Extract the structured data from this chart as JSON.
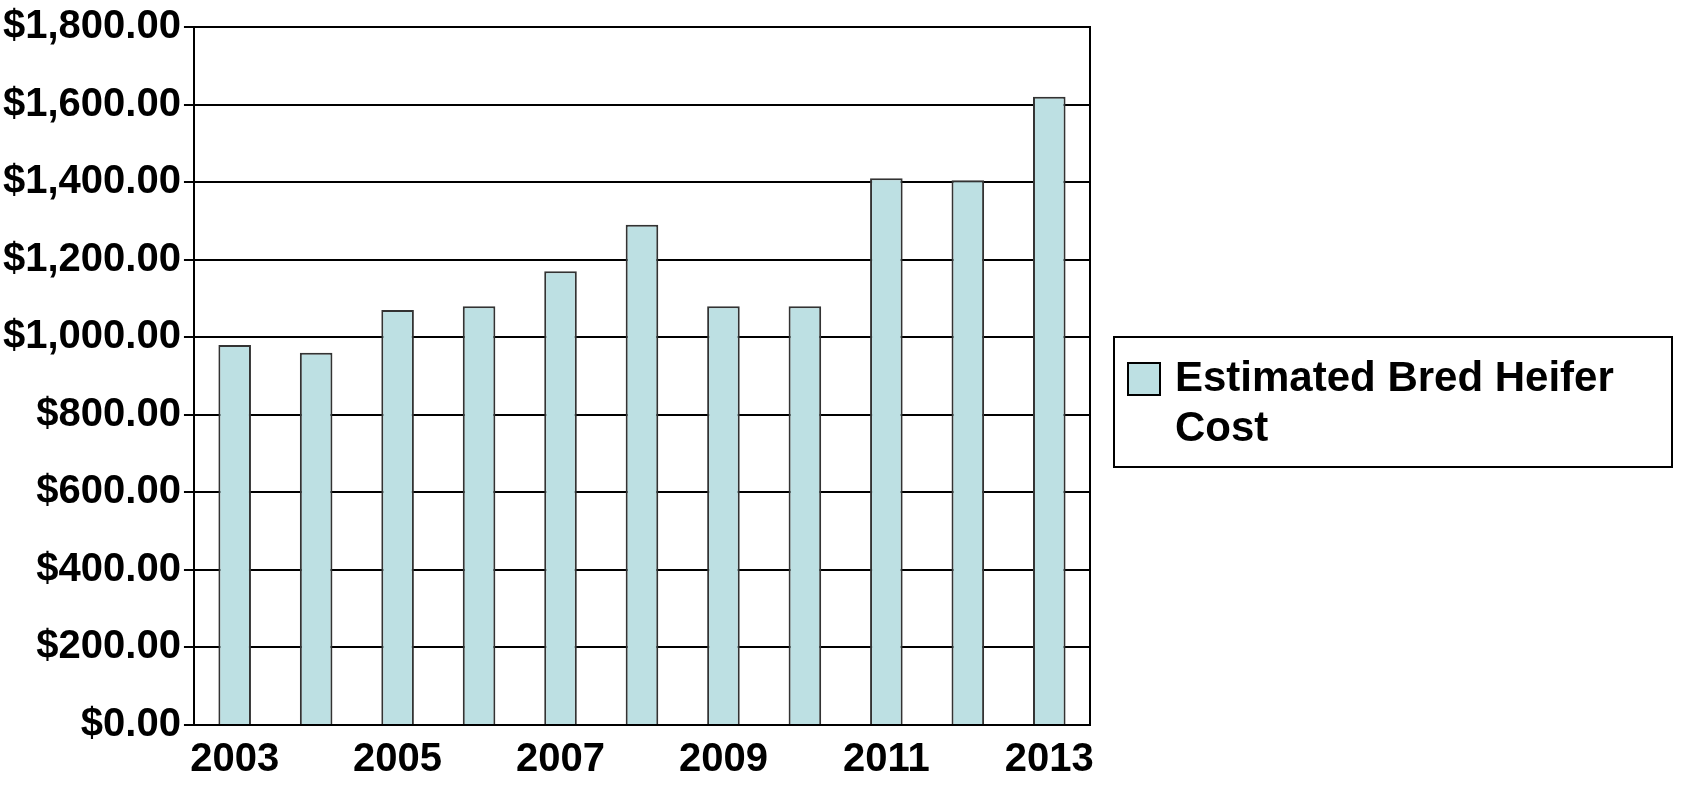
{
  "chart_data": {
    "type": "bar",
    "categories": [
      "2003",
      null,
      "2005",
      null,
      "2007",
      null,
      "2009",
      null,
      "2011",
      null,
      "2013"
    ],
    "series": [
      {
        "name": "Estimated Bred Heifer Cost",
        "color": "#bde0e3",
        "values": [
          980,
          960,
          1070,
          1080,
          1170,
          1290,
          1080,
          1080,
          1410,
          1405,
          1620
        ]
      }
    ],
    "ylim": [
      0,
      1800
    ],
    "yticks": [
      {
        "value": 0,
        "label": "$0.00"
      },
      {
        "value": 200,
        "label": "$200.00"
      },
      {
        "value": 400,
        "label": "$400.00"
      },
      {
        "value": 600,
        "label": "$600.00"
      },
      {
        "value": 800,
        "label": "$800.00"
      },
      {
        "value": 1000,
        "label": "$1,000.00"
      },
      {
        "value": 1200,
        "label": "$1,200.00"
      },
      {
        "value": 1400,
        "label": "$1,400.00"
      },
      {
        "value": 1600,
        "label": "$1,600.00"
      },
      {
        "value": 1800,
        "label": "$1,800.00"
      }
    ],
    "grid": "y",
    "legend": "right"
  }
}
